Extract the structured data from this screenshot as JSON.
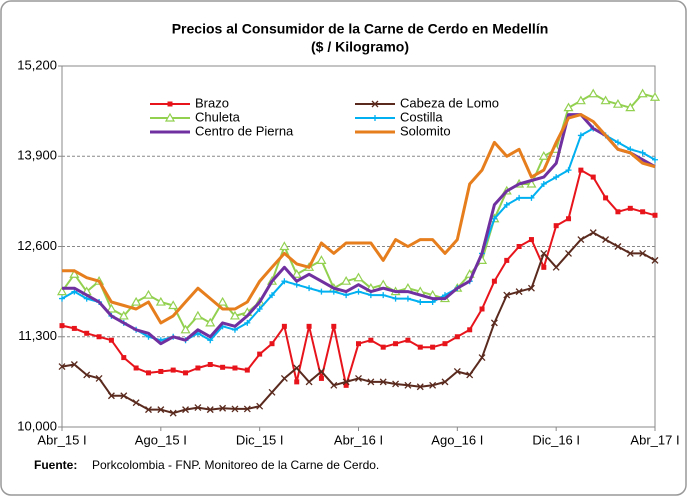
{
  "chart_data": {
    "type": "line",
    "title": "Precios al Consumidor  de la Carne de Cerdo en Medellín",
    "subtitle": "($ / Kilogramo)",
    "source_label": "Fuente:",
    "source": "Porkcolombia - FNP.  Monitoreo de la Carne de Cerdo.",
    "categories": [
      "Abr_15 I",
      null,
      null,
      null,
      null,
      null,
      null,
      null,
      "Ago_15 I",
      null,
      null,
      null,
      null,
      null,
      null,
      null,
      "Dic_15 I",
      null,
      null,
      null,
      null,
      null,
      null,
      null,
      "Abr_16 I",
      null,
      null,
      null,
      null,
      null,
      null,
      null,
      "Ago_16 I",
      null,
      null,
      null,
      null,
      null,
      null,
      null,
      "Dic_16 I",
      null,
      null,
      null,
      null,
      null,
      null,
      null,
      "Abr_17 I"
    ],
    "ylim": [
      10000,
      15200
    ],
    "yticks": [
      {
        "value": 10000,
        "label": "10,000"
      },
      {
        "value": 11300,
        "label": "11,300"
      },
      {
        "value": 12600,
        "label": "12,600"
      },
      {
        "value": 13900,
        "label": "13,900"
      },
      {
        "value": 15200,
        "label": "15,200"
      }
    ],
    "grid": true,
    "legend": "top",
    "series": [
      {
        "name": "Brazo",
        "color": "#e8141c",
        "marker": "square",
        "values": [
          11460,
          11420,
          11350,
          11300,
          11250,
          11000,
          10850,
          10780,
          10800,
          10820,
          10780,
          10850,
          10900,
          10860,
          10850,
          10820,
          11050,
          11200,
          11450,
          10650,
          11450,
          10700,
          11450,
          10600,
          11200,
          11250,
          11150,
          11200,
          11250,
          11150,
          11150,
          11200,
          11300,
          11400,
          11700,
          12100,
          12400,
          12600,
          12700,
          12300,
          12900,
          13000,
          13700,
          13600,
          13300,
          13100,
          13150,
          13100,
          13050
        ]
      },
      {
        "name": "Cabeza de Lomo",
        "color": "#5a2a1e",
        "marker": "cross",
        "values": [
          10870,
          10900,
          10750,
          10700,
          10450,
          10450,
          10350,
          10250,
          10250,
          10200,
          10250,
          10280,
          10250,
          10270,
          10260,
          10260,
          10300,
          10500,
          10700,
          10850,
          10650,
          10800,
          10600,
          10650,
          10700,
          10650,
          10650,
          10620,
          10600,
          10580,
          10600,
          10650,
          10800,
          10750,
          11000,
          11500,
          11900,
          11950,
          12000,
          12500,
          12300,
          12500,
          12700,
          12800,
          12700,
          12600,
          12500,
          12500,
          12400
        ]
      },
      {
        "name": "Chuleta",
        "color": "#92d050",
        "marker": "triangle",
        "values": [
          11950,
          12200,
          11950,
          12100,
          11700,
          11600,
          11800,
          11900,
          11800,
          11750,
          11400,
          11600,
          11500,
          11800,
          11600,
          11650,
          11800,
          12100,
          12600,
          12200,
          12300,
          12400,
          12000,
          12100,
          12150,
          12000,
          12050,
          11950,
          12000,
          11950,
          11900,
          11850,
          12000,
          12200,
          12400,
          13000,
          13400,
          13500,
          13500,
          13900,
          14000,
          14600,
          14700,
          14800,
          14700,
          14650,
          14600,
          14800,
          14750
        ]
      },
      {
        "name": "Costilla",
        "color": "#00b0f0",
        "marker": "plus",
        "values": [
          11850,
          11950,
          11850,
          11800,
          11600,
          11500,
          11400,
          11300,
          11250,
          11300,
          11250,
          11350,
          11250,
          11450,
          11400,
          11500,
          11700,
          11900,
          12100,
          12050,
          12000,
          11950,
          11950,
          11900,
          11950,
          11900,
          11900,
          11850,
          11850,
          11800,
          11800,
          11900,
          12000,
          12100,
          12500,
          13000,
          13200,
          13300,
          13300,
          13500,
          13600,
          13700,
          14200,
          14300,
          14200,
          14100,
          14000,
          13950,
          13850
        ]
      },
      {
        "name": "Centro de Pierna",
        "color": "#7030a0",
        "marker": "none",
        "values": [
          12000,
          12000,
          11900,
          11800,
          11600,
          11500,
          11400,
          11350,
          11200,
          11300,
          11250,
          11400,
          11300,
          11500,
          11450,
          11600,
          11800,
          12100,
          12300,
          12100,
          12200,
          12100,
          12000,
          11950,
          12050,
          11950,
          12000,
          11950,
          11950,
          11900,
          11850,
          11850,
          12000,
          12100,
          12500,
          13200,
          13400,
          13500,
          13550,
          13600,
          13800,
          14500,
          14500,
          14300,
          14200,
          14000,
          13950,
          13850,
          13750
        ]
      },
      {
        "name": "Solomito",
        "color": "#e67e1e",
        "marker": "none",
        "values": [
          12250,
          12250,
          12150,
          12100,
          11800,
          11750,
          11700,
          11800,
          11500,
          11600,
          11800,
          12000,
          11850,
          11700,
          11700,
          11800,
          12100,
          12300,
          12500,
          12350,
          12300,
          12650,
          12500,
          12650,
          12650,
          12650,
          12400,
          12700,
          12600,
          12700,
          12700,
          12500,
          12700,
          13500,
          13700,
          14100,
          13900,
          14000,
          13600,
          13700,
          14100,
          14450,
          14500,
          14400,
          14200,
          14000,
          13950,
          13800,
          13750
        ]
      }
    ]
  }
}
